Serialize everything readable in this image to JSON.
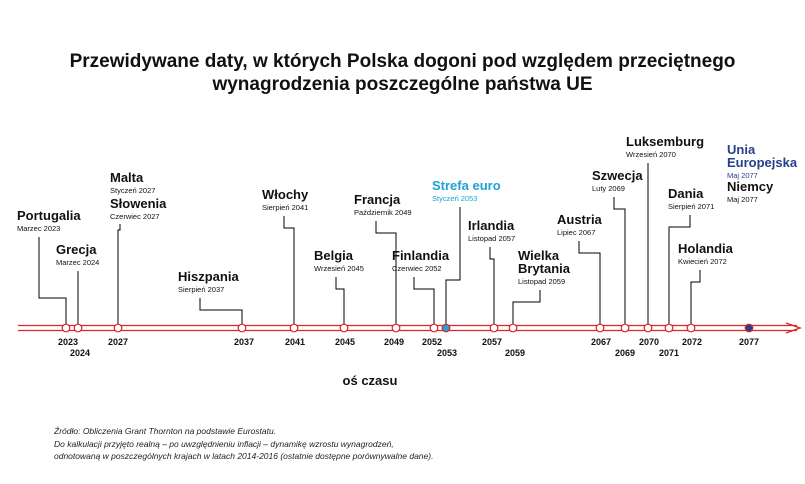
{
  "title": "Przewidywane daty, w których Polska dogoni pod względem przeciętnego\nwynagrodzenia poszczególne państwa UE",
  "axis_title": "oś czasu",
  "source_lines": [
    "Źródło: Obliczenia Grant Thornton na podstawie Eurostatu.",
    "Do kalkulacji przyjęto realną – po uwzględnieniu inflacji – dynamikę wzrostu wynagrodzeń,",
    "odnotowaną w poszczególnych krajach w latach 2014-2016 (ostatnie dostępne porównywalne dane)."
  ],
  "colors": {
    "axis": "#d9252b",
    "text": "#111111",
    "strefa_euro": "#1ea3d8",
    "unia": "#27408b"
  },
  "chart_data": {
    "type": "timeline",
    "xlim": [
      2020.5,
      2079.5
    ],
    "grid": false,
    "events": [
      {
        "country": "Portugalia",
        "date": "Marzec 2023",
        "year": 2023,
        "tick": "2023"
      },
      {
        "country": "Grecja",
        "date": "Marzec 2024",
        "year": 2024,
        "tick": "2024"
      },
      {
        "country": "Malta",
        "date": "Styczeń 2027",
        "year": 2027,
        "tick": "2027",
        "group": "2027"
      },
      {
        "country": "Słowenia",
        "date": "Czerwiec 2027",
        "year": 2027,
        "group": "2027"
      },
      {
        "country": "Hiszpania",
        "date": "Sierpień 2037",
        "year": 2037,
        "tick": "2037"
      },
      {
        "country": "Włochy",
        "date": "Sierpień 2041",
        "year": 2041,
        "tick": "2041"
      },
      {
        "country": "Belgia",
        "date": "Wrzesień 2045",
        "year": 2045,
        "tick": "2045"
      },
      {
        "country": "Francja",
        "date": "Październik 2049",
        "year": 2049,
        "tick": "2049"
      },
      {
        "country": "Finlandia",
        "date": "Czerwiec 2052",
        "year": 2052,
        "tick": "2052"
      },
      {
        "country": "Strefa euro",
        "date": "Styczeń 2053",
        "year": 2053,
        "tick": "2053",
        "highlight": "strefa_euro"
      },
      {
        "country": "Irlandia",
        "date": "Listopad 2057",
        "year": 2057,
        "tick": "2057"
      },
      {
        "country": "Wielka\nBrytania",
        "date": "Listopad 2059",
        "year": 2059,
        "tick": "2059"
      },
      {
        "country": "Austria",
        "date": "Lipiec 2067",
        "year": 2067,
        "tick": "2067"
      },
      {
        "country": "Szwecja",
        "date": "Luty 2069",
        "year": 2069,
        "tick": "2069"
      },
      {
        "country": "Luksemburg",
        "date": "Wrzesień 2070",
        "year": 2070,
        "tick": "2070"
      },
      {
        "country": "Dania",
        "date": "Sierpień 2071",
        "year": 2071,
        "tick": "2071"
      },
      {
        "country": "Holandia",
        "date": "Kwiecień 2072",
        "year": 2072,
        "tick": "2072"
      },
      {
        "country": "Unia\nEuropejska",
        "date": "Maj 2077",
        "year": 2077,
        "tick": "2077",
        "group": "2077",
        "highlight": "unia"
      },
      {
        "country": "Niemcy",
        "date": "Maj 2077",
        "year": 2077,
        "group": "2077"
      }
    ]
  }
}
